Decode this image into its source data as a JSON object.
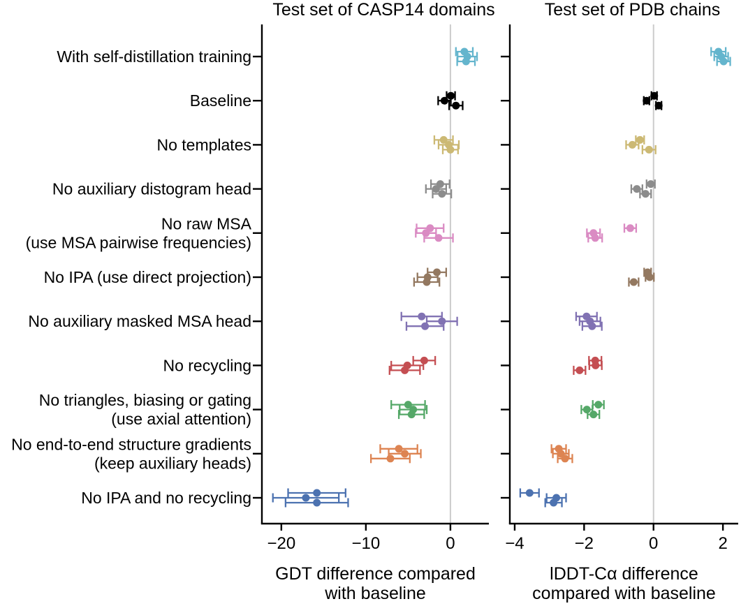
{
  "chart_data": {
    "type": "scatter",
    "description": "Dot-and-error-bar ablation plot, three seeds per ablation, horizontal error bars, vertical zero reference line",
    "background_color": "#ffffff",
    "axis_color": "#000000",
    "zero_line_color": "#cccccc",
    "panels": [
      {
        "title": "Test set of CASP14 domains",
        "xlabel_lines": [
          "GDT difference compared",
          "with baseline"
        ],
        "xlim": [
          -22.3,
          4.55
        ],
        "xticks": [
          {
            "v": -20,
            "label": "−20"
          },
          {
            "v": -10,
            "label": "−10"
          },
          {
            "v": 0,
            "label": "0"
          }
        ],
        "value_key": "casp14_gdt"
      },
      {
        "title": "Test set of PDB chains",
        "xlabel_lines": [
          "lDDT-Cα difference",
          "compared with baseline"
        ],
        "xlim": [
          -4.14,
          2.44
        ],
        "xticks": [
          {
            "v": -4,
            "label": "−4"
          },
          {
            "v": -2,
            "label": "−2"
          },
          {
            "v": 0,
            "label": "0"
          },
          {
            "v": 2,
            "label": "2"
          }
        ],
        "value_key": "pdb_lddt"
      }
    ],
    "rows": [
      {
        "label_lines": [
          "With self-distillation training"
        ],
        "color": "#64B5CD",
        "casp14_gdt": [
          [
            1.65,
            1.0
          ],
          [
            2.0,
            1.15
          ],
          [
            1.85,
            1.05
          ]
        ],
        "pdb_lddt": [
          [
            1.87,
            0.21
          ],
          [
            1.95,
            0.2
          ],
          [
            2.02,
            0.19
          ]
        ]
      },
      {
        "label_lines": [
          "Baseline"
        ],
        "color": "#000000",
        "casp14_gdt": [
          [
            0.05,
            0.5
          ],
          [
            -0.7,
            0.75
          ],
          [
            0.65,
            0.8
          ]
        ],
        "pdb_lddt": [
          [
            0.02,
            0.08
          ],
          [
            -0.2,
            0.08
          ],
          [
            0.15,
            0.08
          ]
        ]
      },
      {
        "label_lines": [
          "No templates"
        ],
        "color": "#CCB974",
        "casp14_gdt": [
          [
            -0.8,
            1.1
          ],
          [
            -0.2,
            1.2
          ],
          [
            0.0,
            0.9
          ]
        ],
        "pdb_lddt": [
          [
            -0.39,
            0.12
          ],
          [
            -0.61,
            0.18
          ],
          [
            -0.13,
            0.19
          ]
        ]
      },
      {
        "label_lines": [
          "No auxiliary distogram head"
        ],
        "color": "#8C8C8C",
        "casp14_gdt": [
          [
            -1.2,
            1.1
          ],
          [
            -1.7,
            1.2
          ],
          [
            -1.0,
            1.1
          ]
        ],
        "pdb_lddt": [
          [
            -0.08,
            0.12
          ],
          [
            -0.48,
            0.16
          ],
          [
            -0.23,
            0.16
          ]
        ]
      },
      {
        "label_lines": [
          "No raw MSA",
          "(use MSA pairwise frequencies)"
        ],
        "color": "#DA8BC3",
        "casp14_gdt": [
          [
            -2.4,
            1.6
          ],
          [
            -2.9,
            1.2
          ],
          [
            -1.4,
            1.7
          ]
        ],
        "pdb_lddt": [
          [
            -0.67,
            0.17
          ],
          [
            -1.73,
            0.19
          ],
          [
            -1.68,
            0.2
          ]
        ]
      },
      {
        "label_lines": [
          "No IPA (use direct projection)"
        ],
        "color": "#937860",
        "casp14_gdt": [
          [
            -1.6,
            1.1
          ],
          [
            -2.7,
            1.2
          ],
          [
            -2.8,
            1.5
          ]
        ],
        "pdb_lddt": [
          [
            -0.17,
            0.1
          ],
          [
            -0.11,
            0.12
          ],
          [
            -0.57,
            0.14
          ]
        ]
      },
      {
        "label_lines": [
          "No auxiliary masked MSA head"
        ],
        "color": "#8172B3",
        "casp14_gdt": [
          [
            -3.4,
            2.4
          ],
          [
            -1.0,
            1.8
          ],
          [
            -3.0,
            2.2
          ]
        ],
        "pdb_lddt": [
          [
            -1.93,
            0.3
          ],
          [
            -1.83,
            0.3
          ],
          [
            -1.77,
            0.28
          ]
        ]
      },
      {
        "label_lines": [
          "No recycling"
        ],
        "color": "#C44E52",
        "casp14_gdt": [
          [
            -3.1,
            1.3
          ],
          [
            -5.1,
            1.9
          ],
          [
            -5.4,
            1.8
          ]
        ],
        "pdb_lddt": [
          [
            -1.68,
            0.18
          ],
          [
            -1.67,
            0.18
          ],
          [
            -2.13,
            0.17
          ]
        ]
      },
      {
        "label_lines": [
          "No triangles, biasing or gating",
          "(use axial attention)"
        ],
        "color": "#55A868",
        "casp14_gdt": [
          [
            -5.0,
            2.0
          ],
          [
            -4.4,
            1.6
          ],
          [
            -4.6,
            1.5
          ]
        ],
        "pdb_lddt": [
          [
            -1.59,
            0.16
          ],
          [
            -1.92,
            0.16
          ],
          [
            -1.73,
            0.17
          ]
        ]
      },
      {
        "label_lines": [
          "No end-to-end structure gradients",
          "(keep auxiliary heads)"
        ],
        "color": "#DD8452",
        "casp14_gdt": [
          [
            -6.1,
            2.2
          ],
          [
            -5.4,
            1.9
          ],
          [
            -7.1,
            2.3
          ]
        ],
        "pdb_lddt": [
          [
            -2.73,
            0.21
          ],
          [
            -2.67,
            0.23
          ],
          [
            -2.55,
            0.21
          ]
        ]
      },
      {
        "label_lines": [
          "No IPA and no recycling"
        ],
        "color": "#4C72B0",
        "casp14_gdt": [
          [
            -15.8,
            3.4
          ],
          [
            -17.1,
            3.9
          ],
          [
            -15.8,
            3.7
          ]
        ],
        "pdb_lddt": [
          [
            -3.57,
            0.27
          ],
          [
            -2.8,
            0.28
          ],
          [
            -2.88,
            0.24
          ]
        ]
      }
    ]
  }
}
